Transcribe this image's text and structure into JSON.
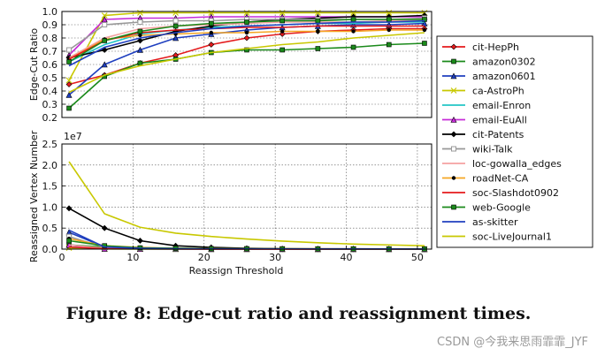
{
  "caption": "Figure 8: Edge-cut ratio and reassignment times.",
  "watermark": "CSDN @今我来思雨霏霏_JYF",
  "chart_data": [
    {
      "type": "line",
      "panel": "top",
      "ylabel": "Edge-Cut Ratio",
      "xlabel": "",
      "xlim": [
        0,
        52
      ],
      "ylim": [
        0.2,
        1.0
      ],
      "yticks": [
        "0.2",
        "0.3",
        "0.4",
        "0.5",
        "0.6",
        "0.7",
        "0.8",
        "0.9",
        "1.0"
      ],
      "x": [
        1,
        6,
        11,
        16,
        21,
        26,
        31,
        36,
        41,
        46,
        51
      ],
      "series": [
        {
          "name": "cit-HepPh",
          "color": "#e41a1c",
          "marker": "diamond",
          "values": [
            0.45,
            0.52,
            0.61,
            0.67,
            0.75,
            0.8,
            0.83,
            0.85,
            0.86,
            0.87,
            0.87
          ]
        },
        {
          "name": "amazon0302",
          "color": "#1a8a1a",
          "marker": "square",
          "values": [
            0.27,
            0.51,
            0.61,
            0.64,
            0.69,
            0.71,
            0.71,
            0.72,
            0.73,
            0.75,
            0.76
          ]
        },
        {
          "name": "amazon0601",
          "color": "#1f3fbf",
          "marker": "triangle",
          "values": [
            0.37,
            0.6,
            0.71,
            0.8,
            0.83,
            0.86,
            0.88,
            0.89,
            0.9,
            0.9,
            0.91
          ]
        },
        {
          "name": "ca-AstroPh",
          "color": "#c8c800",
          "marker": "x",
          "values": [
            0.48,
            0.97,
            0.99,
            0.99,
            0.99,
            0.99,
            0.99,
            0.99,
            0.99,
            0.99,
            0.99
          ]
        },
        {
          "name": "email-Enron",
          "color": "#22c4c4",
          "marker": "none",
          "values": [
            0.62,
            0.75,
            0.83,
            0.86,
            0.88,
            0.89,
            0.9,
            0.91,
            0.91,
            0.92,
            0.92
          ]
        },
        {
          "name": "email-EuAll",
          "color": "#c62bd8",
          "marker": "triangle",
          "values": [
            0.67,
            0.94,
            0.95,
            0.95,
            0.96,
            0.96,
            0.96,
            0.96,
            0.96,
            0.96,
            0.96
          ]
        },
        {
          "name": "cit-Patents",
          "color": "#000000",
          "marker": "diamond",
          "values": [
            0.65,
            0.71,
            0.78,
            0.85,
            0.89,
            0.92,
            0.94,
            0.95,
            0.96,
            0.96,
            0.97
          ]
        },
        {
          "name": "wiki-Talk",
          "color": "#999999",
          "marker": "square-open",
          "values": [
            0.71,
            0.9,
            0.92,
            0.93,
            0.93,
            0.94,
            0.94,
            0.94,
            0.94,
            0.94,
            0.95
          ]
        },
        {
          "name": "loc-gowalla_edges",
          "color": "#f4a0a0",
          "marker": "none",
          "values": [
            0.65,
            0.8,
            0.87,
            0.89,
            0.9,
            0.91,
            0.92,
            0.92,
            0.92,
            0.93,
            0.93
          ]
        },
        {
          "name": "roadNet-CA",
          "color": "#f5a623",
          "marker": "dot",
          "values": [
            0.64,
            0.79,
            0.82,
            0.83,
            0.84,
            0.84,
            0.85,
            0.85,
            0.85,
            0.86,
            0.86
          ]
        },
        {
          "name": "soc-Slashdot0902",
          "color": "#e41a1c",
          "marker": "none",
          "values": [
            0.64,
            0.78,
            0.84,
            0.86,
            0.87,
            0.88,
            0.88,
            0.89,
            0.89,
            0.89,
            0.89
          ]
        },
        {
          "name": "web-Google",
          "color": "#1a8a1a",
          "marker": "square",
          "values": [
            0.62,
            0.78,
            0.85,
            0.89,
            0.91,
            0.92,
            0.93,
            0.93,
            0.94,
            0.94,
            0.94
          ]
        },
        {
          "name": "as-skitter",
          "color": "#1f3fbf",
          "marker": "none",
          "values": [
            0.59,
            0.73,
            0.8,
            0.84,
            0.87,
            0.89,
            0.9,
            0.91,
            0.92,
            0.92,
            0.93
          ]
        },
        {
          "name": "soc-LiveJournal1",
          "color": "#c8c800",
          "marker": "none",
          "values": [
            0.39,
            0.52,
            0.59,
            0.64,
            0.69,
            0.72,
            0.75,
            0.77,
            0.8,
            0.82,
            0.84
          ]
        }
      ]
    },
    {
      "type": "line",
      "panel": "bottom",
      "ylabel": "Reassigned Vertex Number",
      "xlabel": "Reassign Threshold",
      "scale_label": "1e7",
      "xlim": [
        0,
        52
      ],
      "ylim": [
        0,
        2.5
      ],
      "xticks": [
        "0",
        "10",
        "20",
        "30",
        "40",
        "50"
      ],
      "yticks": [
        "0.0",
        "0.5",
        "1.0",
        "1.5",
        "2.0",
        "2.5"
      ],
      "x": [
        1,
        6,
        11,
        16,
        21,
        26,
        31,
        36,
        41,
        46,
        51
      ],
      "series": [
        {
          "name": "cit-HepPh",
          "color": "#e41a1c",
          "marker": "diamond",
          "values": [
            0.05,
            0.02,
            0.01,
            0.005,
            0.004,
            0.003,
            0.002,
            0.002,
            0.001,
            0.001,
            0.001
          ]
        },
        {
          "name": "amazon0302",
          "color": "#1a8a1a",
          "marker": "square",
          "values": [
            0.1,
            0.05,
            0.02,
            0.01,
            0.008,
            0.006,
            0.005,
            0.004,
            0.003,
            0.003,
            0.002
          ]
        },
        {
          "name": "amazon0601",
          "color": "#1f3fbf",
          "marker": "triangle",
          "values": [
            0.4,
            0.05,
            0.02,
            0.01,
            0.008,
            0.006,
            0.005,
            0.004,
            0.003,
            0.003,
            0.002
          ]
        },
        {
          "name": "ca-AstroPh",
          "color": "#c8c800",
          "marker": "x",
          "values": [
            0.03,
            0.005,
            0.002,
            0.001,
            0.001,
            0.001,
            0.001,
            0.001,
            0.001,
            0.001,
            0.001
          ]
        },
        {
          "name": "email-Enron",
          "color": "#22c4c4",
          "marker": "none",
          "values": [
            0.05,
            0.01,
            0.005,
            0.003,
            0.002,
            0.002,
            0.001,
            0.001,
            0.001,
            0.001,
            0.001
          ]
        },
        {
          "name": "email-EuAll",
          "color": "#c62bd8",
          "marker": "triangle",
          "values": [
            0.1,
            0.01,
            0.005,
            0.003,
            0.002,
            0.002,
            0.001,
            0.001,
            0.001,
            0.001,
            0.001
          ]
        },
        {
          "name": "cit-Patents",
          "color": "#000000",
          "marker": "diamond",
          "values": [
            0.97,
            0.5,
            0.2,
            0.08,
            0.04,
            0.02,
            0.01,
            0.008,
            0.006,
            0.005,
            0.004
          ]
        },
        {
          "name": "wiki-Talk",
          "color": "#999999",
          "marker": "square-open",
          "values": [
            0.3,
            0.04,
            0.02,
            0.01,
            0.008,
            0.006,
            0.005,
            0.004,
            0.003,
            0.003,
            0.002
          ]
        },
        {
          "name": "loc-gowalla_edges",
          "color": "#f4a0a0",
          "marker": "none",
          "values": [
            0.1,
            0.02,
            0.01,
            0.005,
            0.004,
            0.003,
            0.002,
            0.002,
            0.001,
            0.001,
            0.001
          ]
        },
        {
          "name": "roadNet-CA",
          "color": "#f5a623",
          "marker": "dot",
          "values": [
            0.25,
            0.08,
            0.04,
            0.02,
            0.015,
            0.01,
            0.008,
            0.006,
            0.005,
            0.004,
            0.004
          ]
        },
        {
          "name": "soc-Slashdot0902",
          "color": "#e41a1c",
          "marker": "none",
          "values": [
            0.05,
            0.01,
            0.005,
            0.003,
            0.002,
            0.002,
            0.001,
            0.001,
            0.001,
            0.001,
            0.001
          ]
        },
        {
          "name": "web-Google",
          "color": "#1a8a1a",
          "marker": "square",
          "values": [
            0.2,
            0.08,
            0.03,
            0.02,
            0.01,
            0.008,
            0.006,
            0.005,
            0.004,
            0.003,
            0.003
          ]
        },
        {
          "name": "as-skitter",
          "color": "#1f3fbf",
          "marker": "none",
          "values": [
            0.45,
            0.05,
            0.02,
            0.01,
            0.008,
            0.006,
            0.005,
            0.004,
            0.003,
            0.003,
            0.002
          ]
        },
        {
          "name": "soc-LiveJournal1",
          "color": "#c8c800",
          "marker": "none",
          "values": [
            2.08,
            0.84,
            0.52,
            0.38,
            0.3,
            0.24,
            0.19,
            0.15,
            0.12,
            0.1,
            0.08
          ]
        }
      ]
    }
  ]
}
